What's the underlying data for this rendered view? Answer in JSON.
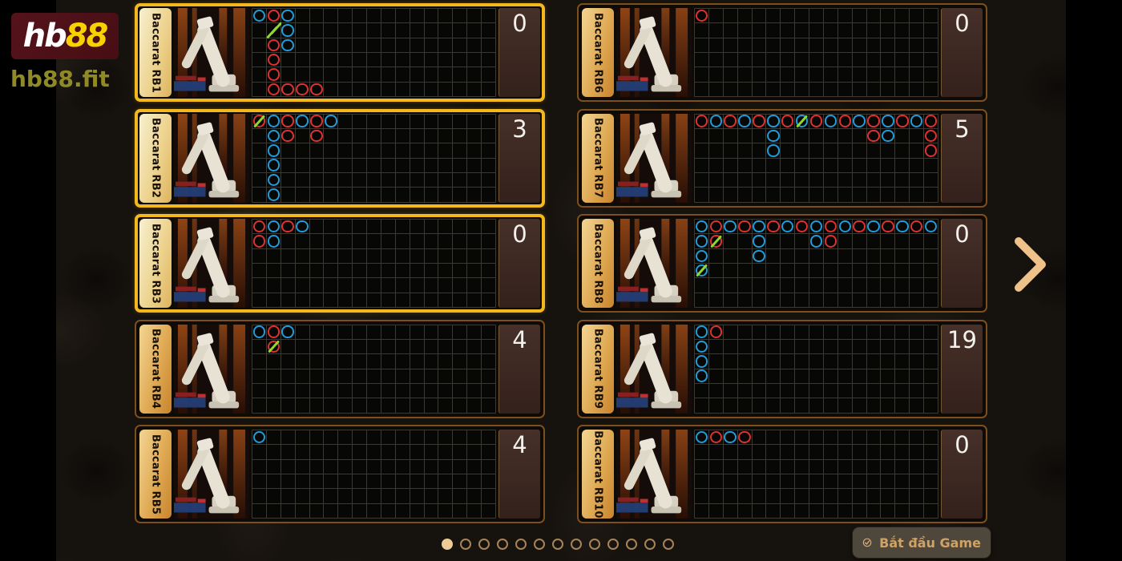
{
  "brand": {
    "logo_text_white": "hb",
    "logo_text_yellow": "88",
    "site_url": "hb88.fit"
  },
  "colors": {
    "banker_red": "#e03030",
    "player_blue": "#1f9cd9",
    "tie_green": "#8fd92e",
    "highlight_gold": "#f3b81d",
    "logo_yellow": "#f7d200",
    "logo_banner_maroon": "#4d1016"
  },
  "lobby": {
    "grid": {
      "rows": 6,
      "cols": 17
    },
    "tables": [
      {
        "name": "Baccarat RB1",
        "count": "0",
        "highlighted": true,
        "marks": [
          {
            "r": 0,
            "c": 0,
            "v": "blue"
          },
          {
            "r": 0,
            "c": 1,
            "v": "red"
          },
          {
            "r": 0,
            "c": 2,
            "v": "blue"
          },
          {
            "r": 1,
            "c": 1,
            "v": "tie"
          },
          {
            "r": 1,
            "c": 2,
            "v": "blue"
          },
          {
            "r": 2,
            "c": 1,
            "v": "red"
          },
          {
            "r": 2,
            "c": 2,
            "v": "blue"
          },
          {
            "r": 3,
            "c": 1,
            "v": "red"
          },
          {
            "r": 4,
            "c": 1,
            "v": "red"
          },
          {
            "r": 5,
            "c": 1,
            "v": "red"
          },
          {
            "r": 5,
            "c": 2,
            "v": "red"
          },
          {
            "r": 5,
            "c": 3,
            "v": "red"
          },
          {
            "r": 5,
            "c": 4,
            "v": "red"
          }
        ]
      },
      {
        "name": "Baccarat RB2",
        "count": "3",
        "highlighted": true,
        "marks": [
          {
            "r": 0,
            "c": 0,
            "v": "red",
            "tie": true
          },
          {
            "r": 0,
            "c": 1,
            "v": "blue"
          },
          {
            "r": 0,
            "c": 2,
            "v": "red"
          },
          {
            "r": 0,
            "c": 3,
            "v": "blue"
          },
          {
            "r": 0,
            "c": 4,
            "v": "red"
          },
          {
            "r": 0,
            "c": 5,
            "v": "blue"
          },
          {
            "r": 1,
            "c": 1,
            "v": "blue"
          },
          {
            "r": 1,
            "c": 2,
            "v": "red"
          },
          {
            "r": 1,
            "c": 4,
            "v": "red"
          },
          {
            "r": 2,
            "c": 1,
            "v": "blue"
          },
          {
            "r": 3,
            "c": 1,
            "v": "blue"
          },
          {
            "r": 4,
            "c": 1,
            "v": "blue"
          },
          {
            "r": 5,
            "c": 1,
            "v": "blue"
          }
        ]
      },
      {
        "name": "Baccarat RB3",
        "count": "0",
        "highlighted": true,
        "marks": [
          {
            "r": 0,
            "c": 0,
            "v": "red"
          },
          {
            "r": 0,
            "c": 1,
            "v": "blue"
          },
          {
            "r": 0,
            "c": 2,
            "v": "red"
          },
          {
            "r": 0,
            "c": 3,
            "v": "blue"
          },
          {
            "r": 1,
            "c": 0,
            "v": "red"
          },
          {
            "r": 1,
            "c": 1,
            "v": "blue"
          }
        ]
      },
      {
        "name": "Baccarat RB4",
        "count": "4",
        "highlighted": false,
        "marks": [
          {
            "r": 0,
            "c": 0,
            "v": "blue"
          },
          {
            "r": 0,
            "c": 1,
            "v": "red"
          },
          {
            "r": 0,
            "c": 2,
            "v": "blue"
          },
          {
            "r": 1,
            "c": 1,
            "v": "red",
            "tie": true
          }
        ]
      },
      {
        "name": "Baccarat RB5",
        "count": "4",
        "highlighted": false,
        "marks": [
          {
            "r": 0,
            "c": 0,
            "v": "blue"
          }
        ]
      },
      {
        "name": "Baccarat RB6",
        "count": "0",
        "highlighted": false,
        "marks": [
          {
            "r": 0,
            "c": 0,
            "v": "red"
          }
        ]
      },
      {
        "name": "Baccarat RB7",
        "count": "5",
        "highlighted": false,
        "marks": [
          {
            "r": 0,
            "c": 0,
            "v": "red"
          },
          {
            "r": 0,
            "c": 1,
            "v": "blue"
          },
          {
            "r": 0,
            "c": 2,
            "v": "red"
          },
          {
            "r": 0,
            "c": 3,
            "v": "blue"
          },
          {
            "r": 0,
            "c": 4,
            "v": "red"
          },
          {
            "r": 0,
            "c": 5,
            "v": "blue"
          },
          {
            "r": 0,
            "c": 6,
            "v": "red"
          },
          {
            "r": 0,
            "c": 7,
            "v": "blue",
            "tie": true
          },
          {
            "r": 0,
            "c": 8,
            "v": "red"
          },
          {
            "r": 0,
            "c": 9,
            "v": "blue"
          },
          {
            "r": 0,
            "c": 10,
            "v": "red"
          },
          {
            "r": 0,
            "c": 11,
            "v": "blue"
          },
          {
            "r": 0,
            "c": 12,
            "v": "red"
          },
          {
            "r": 0,
            "c": 13,
            "v": "blue"
          },
          {
            "r": 0,
            "c": 14,
            "v": "red"
          },
          {
            "r": 0,
            "c": 15,
            "v": "blue"
          },
          {
            "r": 0,
            "c": 16,
            "v": "red"
          },
          {
            "r": 1,
            "c": 5,
            "v": "blue"
          },
          {
            "r": 1,
            "c": 12,
            "v": "red"
          },
          {
            "r": 1,
            "c": 13,
            "v": "blue"
          },
          {
            "r": 1,
            "c": 16,
            "v": "red"
          },
          {
            "r": 2,
            "c": 5,
            "v": "blue"
          },
          {
            "r": 2,
            "c": 16,
            "v": "red"
          }
        ]
      },
      {
        "name": "Baccarat RB8",
        "count": "0",
        "highlighted": false,
        "marks": [
          {
            "r": 0,
            "c": 0,
            "v": "blue"
          },
          {
            "r": 0,
            "c": 1,
            "v": "red"
          },
          {
            "r": 0,
            "c": 2,
            "v": "blue"
          },
          {
            "r": 0,
            "c": 3,
            "v": "red"
          },
          {
            "r": 0,
            "c": 4,
            "v": "blue"
          },
          {
            "r": 0,
            "c": 5,
            "v": "red"
          },
          {
            "r": 0,
            "c": 6,
            "v": "blue"
          },
          {
            "r": 0,
            "c": 7,
            "v": "red"
          },
          {
            "r": 0,
            "c": 8,
            "v": "blue"
          },
          {
            "r": 0,
            "c": 9,
            "v": "red"
          },
          {
            "r": 0,
            "c": 10,
            "v": "blue"
          },
          {
            "r": 0,
            "c": 11,
            "v": "red"
          },
          {
            "r": 0,
            "c": 12,
            "v": "blue"
          },
          {
            "r": 0,
            "c": 13,
            "v": "red"
          },
          {
            "r": 0,
            "c": 14,
            "v": "blue"
          },
          {
            "r": 0,
            "c": 15,
            "v": "red"
          },
          {
            "r": 0,
            "c": 16,
            "v": "blue"
          },
          {
            "r": 1,
            "c": 0,
            "v": "blue"
          },
          {
            "r": 1,
            "c": 1,
            "v": "red",
            "tie": true
          },
          {
            "r": 1,
            "c": 4,
            "v": "blue"
          },
          {
            "r": 1,
            "c": 8,
            "v": "blue"
          },
          {
            "r": 1,
            "c": 9,
            "v": "red"
          },
          {
            "r": 2,
            "c": 0,
            "v": "blue"
          },
          {
            "r": 2,
            "c": 4,
            "v": "blue"
          },
          {
            "r": 3,
            "c": 0,
            "v": "blue",
            "tie": true
          }
        ]
      },
      {
        "name": "Baccarat RB9",
        "count": "19",
        "highlighted": false,
        "marks": [
          {
            "r": 0,
            "c": 0,
            "v": "blue"
          },
          {
            "r": 0,
            "c": 1,
            "v": "red"
          },
          {
            "r": 1,
            "c": 0,
            "v": "blue"
          },
          {
            "r": 2,
            "c": 0,
            "v": "blue"
          },
          {
            "r": 3,
            "c": 0,
            "v": "blue"
          }
        ]
      },
      {
        "name": "Baccarat RB10",
        "count": "0",
        "highlighted": false,
        "marks": [
          {
            "r": 0,
            "c": 0,
            "v": "blue"
          },
          {
            "r": 0,
            "c": 1,
            "v": "red"
          },
          {
            "r": 0,
            "c": 2,
            "v": "blue"
          },
          {
            "r": 0,
            "c": 3,
            "v": "red"
          }
        ]
      }
    ],
    "pagination": {
      "total_pages": 13,
      "active_index": 0
    },
    "start_button": {
      "label": "Bắt đầu Game",
      "icon": "check-circle-icon"
    },
    "next_arrow_icon": "chevron-right"
  }
}
